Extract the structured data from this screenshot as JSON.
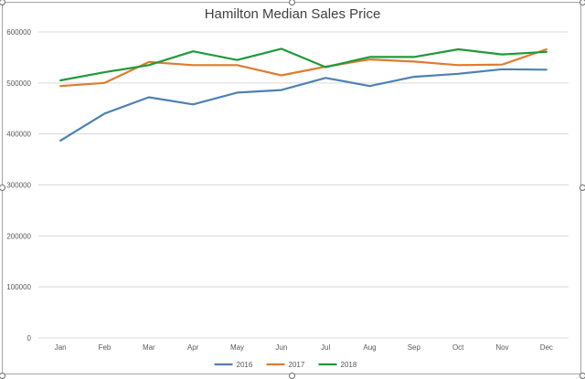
{
  "chart_data": {
    "type": "line",
    "title": "Hamilton Median Sales Price",
    "xlabel": "",
    "ylabel": "",
    "categories": [
      "Jan",
      "Feb",
      "Mar",
      "Apr",
      "May",
      "Jun",
      "Jul",
      "Aug",
      "Sep",
      "Oct",
      "Nov",
      "Dec"
    ],
    "yticks": [
      "0",
      "100000",
      "200000",
      "300000",
      "400000",
      "500000",
      "600000"
    ],
    "ylim": [
      0,
      600000
    ],
    "grid": true,
    "legend_position": "bottom",
    "series": [
      {
        "name": "2016",
        "color": "#4e81b2",
        "values": [
          387000,
          440000,
          472000,
          458000,
          481000,
          486000,
          510000,
          494000,
          512000,
          518000,
          527000,
          526000
        ]
      },
      {
        "name": "2017",
        "color": "#e07b2f",
        "values": [
          494000,
          500000,
          541000,
          535000,
          535000,
          515000,
          532000,
          546000,
          542000,
          535000,
          536000,
          566000
        ]
      },
      {
        "name": "2018",
        "color": "#1e9a3a",
        "values": [
          505000,
          521000,
          535000,
          562000,
          545000,
          567000,
          531000,
          551000,
          551000,
          566000,
          556000,
          561000
        ]
      }
    ]
  }
}
